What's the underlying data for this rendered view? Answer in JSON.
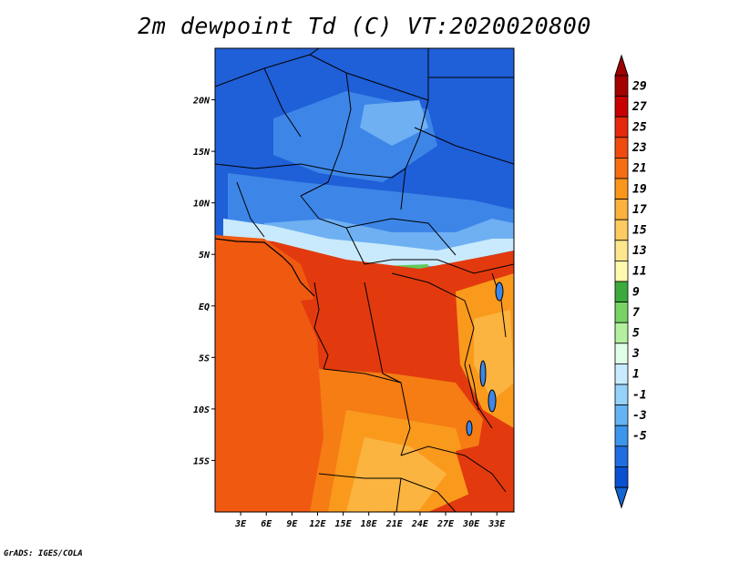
{
  "title": "2m dewpoint Td (C) VT:2020020800",
  "credit": "GrADS: IGES/COLA",
  "map": {
    "lon_ticks": [
      "3E",
      "6E",
      "9E",
      "12E",
      "15E",
      "18E",
      "21E",
      "24E",
      "27E",
      "30E",
      "33E"
    ],
    "lat_ticks": [
      "20N",
      "15N",
      "10N",
      "5N",
      "EQ",
      "5S",
      "10S",
      "15S"
    ],
    "lon_values": [
      3,
      6,
      9,
      12,
      15,
      18,
      21,
      24,
      27,
      30,
      33
    ],
    "lat_values": [
      20,
      15,
      10,
      5,
      0,
      -5,
      -10,
      -15
    ],
    "lon_range": [
      0,
      35
    ],
    "lat_range": [
      -20,
      25
    ]
  },
  "colorbar": {
    "labels": [
      "29",
      "27",
      "25",
      "23",
      "21",
      "19",
      "17",
      "15",
      "13",
      "11",
      "9",
      "7",
      "5",
      "3",
      "1",
      "-1",
      "-3",
      "-5"
    ],
    "colors": [
      "#a50000",
      "#c80000",
      "#e6290c",
      "#f04a0f",
      "#f56e12",
      "#fa9619",
      "#fcb23c",
      "#fdcb60",
      "#fde68c",
      "#fffaaf",
      "#3caa3c",
      "#78d264",
      "#b4f0a0",
      "#e1ffe6",
      "#c8ebff",
      "#96d2fa",
      "#64b4f5",
      "#3c96eb",
      "#1e6ee1",
      "#0a50d2"
    ],
    "min_color": "#1464d2",
    "max_color": "#a00000"
  },
  "field_colors": {
    "deep_blue": "#1f5fd8",
    "blue": "#3d86e8",
    "light_blue": "#6fb0f2",
    "pale": "#c9eafc",
    "green": "#63c85a",
    "pale_green": "#a8ec9a",
    "red": "#e23a0e",
    "orange_red": "#ef5a10",
    "orange": "#f57d14",
    "light_orange": "#fa9a1d",
    "yellow_orange": "#fcb440"
  }
}
